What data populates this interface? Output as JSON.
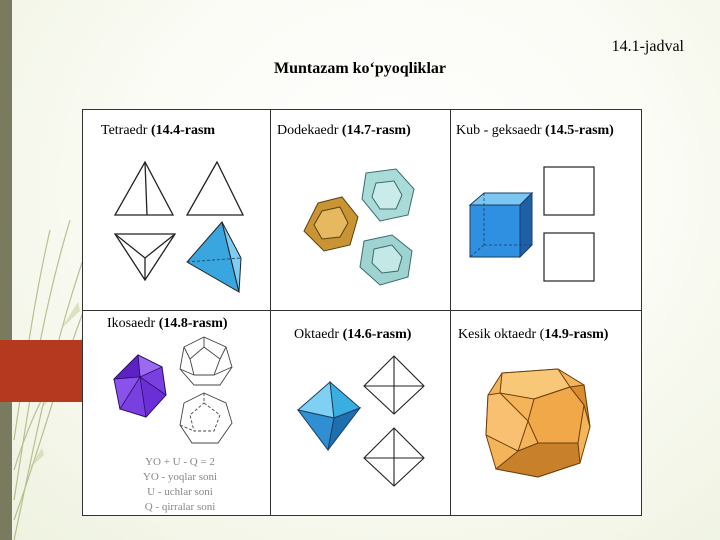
{
  "header": {
    "table_ref": "14.1-jadval",
    "title": "Muntazam ko‘pyoqliklar"
  },
  "cells": [
    {
      "name": "Tetraedr",
      "ref": "(14.4-rasm"
    },
    {
      "name": "Dodekaedr",
      "ref": "(14.7-rasm)"
    },
    {
      "name": "Kub - geksaedr",
      "ref": "(14.5-rasm)"
    },
    {
      "name": "Ikosaedr",
      "ref": "(14.8-rasm)"
    },
    {
      "name": "Oktaedr",
      "ref": "(14.6-rasm)"
    },
    {
      "name": "Kesik oktaedr (",
      "ref": "14.9-rasm)"
    }
  ],
  "euler": {
    "formula": "YO + U - Q = 2",
    "faces": "YO - yoqlar soni",
    "vertices": "U - uchlar soni",
    "edges": "Q - qirralar soni"
  },
  "colors": {
    "accent_arrow": "#b5391f",
    "side_bar": "#7a7a5e",
    "cube_blue": "#2f8fe0",
    "octa_blue": "#3aaee0",
    "dodeca_gold": "#d4a53c",
    "dodeca_teal": "#9fd8d6",
    "icosa_purple": "#7a3fe0",
    "trunc_orange": "#f0a848"
  }
}
